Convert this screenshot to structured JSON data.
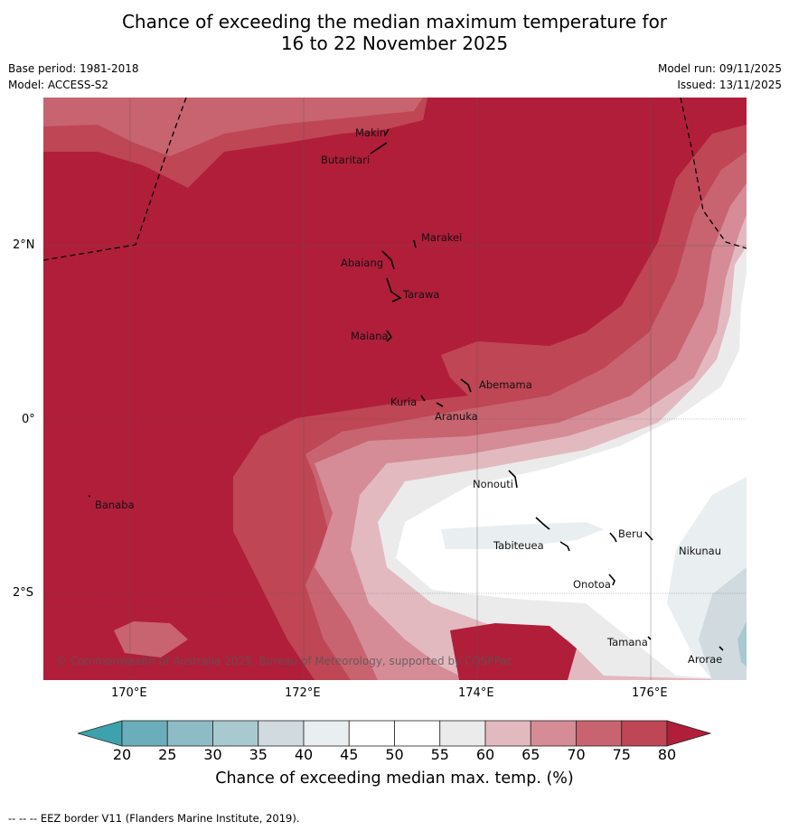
{
  "title": {
    "line1": "Chance of exceeding the median maximum temperature for",
    "line2": "16 to 22 November 2025"
  },
  "meta": {
    "base_period": "Base period: 1981-2018",
    "model": "Model: ACCESS-S2",
    "model_run": "Model run: 09/11/2025",
    "issued": "Issued: 13/11/2025"
  },
  "map": {
    "lat_labels": [
      "2°N",
      "0°",
      "2°S"
    ],
    "lon_labels": [
      "170°E",
      "172°E",
      "174°E",
      "176°E"
    ],
    "copyright": "© Commonwealth of Australia 2025, Bureau of Meteorology, supported by COSPPac",
    "places": [
      "Makin",
      "Butaritari",
      "Marakei",
      "Abaiang",
      "Tarawa",
      "Maiana",
      "Abemama",
      "Kuria",
      "Aranuka",
      "Nonouti",
      "Banaba",
      "Tabiteuea",
      "Beru",
      "Nikunau",
      "Onotoa",
      "Tamana",
      "Arorae"
    ]
  },
  "colorbar": {
    "label": "Chance of exceeding median max. temp. (%)",
    "ticks": [
      "20",
      "25",
      "30",
      "35",
      "40",
      "45",
      "50",
      "55",
      "60",
      "65",
      "70",
      "75",
      "80"
    ],
    "colors": [
      "#6baebb",
      "#8dbcc7",
      "#a8c9d0",
      "#d0dadf",
      "#e9eef1",
      "#ffffff",
      "#ffffff",
      "#ecebec",
      "#e3b9c0",
      "#d58c97",
      "#c8646f",
      "#bf4655"
    ],
    "low_color": "#3ea1ae",
    "high_color": "#b11e3a"
  },
  "footnote": "-- -- -- EEZ border V11 (Flanders Marine Institute, 2019)."
}
